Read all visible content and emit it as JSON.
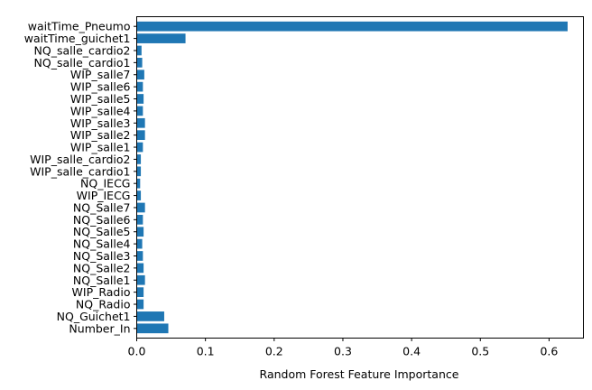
{
  "chart_data": {
    "type": "bar",
    "orientation": "horizontal",
    "categories": [
      "Number_In",
      "NQ_Guichet1",
      "NQ_Radio",
      "WIP_Radio",
      "NQ_Salle1",
      "NQ_Salle2",
      "NQ_Salle3",
      "NQ_Salle4",
      "NQ_Salle5",
      "NQ_Salle6",
      "NQ_Salle7",
      "WIP_IECG",
      "NQ_IECG",
      "WIP_salle_cardio1",
      "WIP_salle_cardio2",
      "WIP_salle1",
      "WIP_salle2",
      "WIP_salle3",
      "WIP_salle4",
      "WIP_salle5",
      "WIP_salle6",
      "WIP_salle7",
      "NQ_salle_cardio1",
      "NQ_salle_cardio2",
      "waitTime_guichet1",
      "waitTime_Pneumo"
    ],
    "values": [
      0.046,
      0.04,
      0.01,
      0.01,
      0.012,
      0.01,
      0.009,
      0.008,
      0.01,
      0.009,
      0.012,
      0.006,
      0.005,
      0.006,
      0.006,
      0.009,
      0.012,
      0.012,
      0.009,
      0.01,
      0.009,
      0.011,
      0.008,
      0.007,
      0.071,
      0.627
    ],
    "xlabel": "Random Forest Feature Importance",
    "ylabel": "",
    "title": "",
    "xlim": [
      0,
      0.65
    ],
    "xticks": [
      0.0,
      0.1,
      0.2,
      0.3,
      0.4,
      0.5,
      0.6
    ],
    "xtick_labels": [
      "0.0",
      "0.1",
      "0.2",
      "0.3",
      "0.4",
      "0.5",
      "0.6"
    ],
    "grid": false,
    "bar_color": "#1f77b4"
  }
}
